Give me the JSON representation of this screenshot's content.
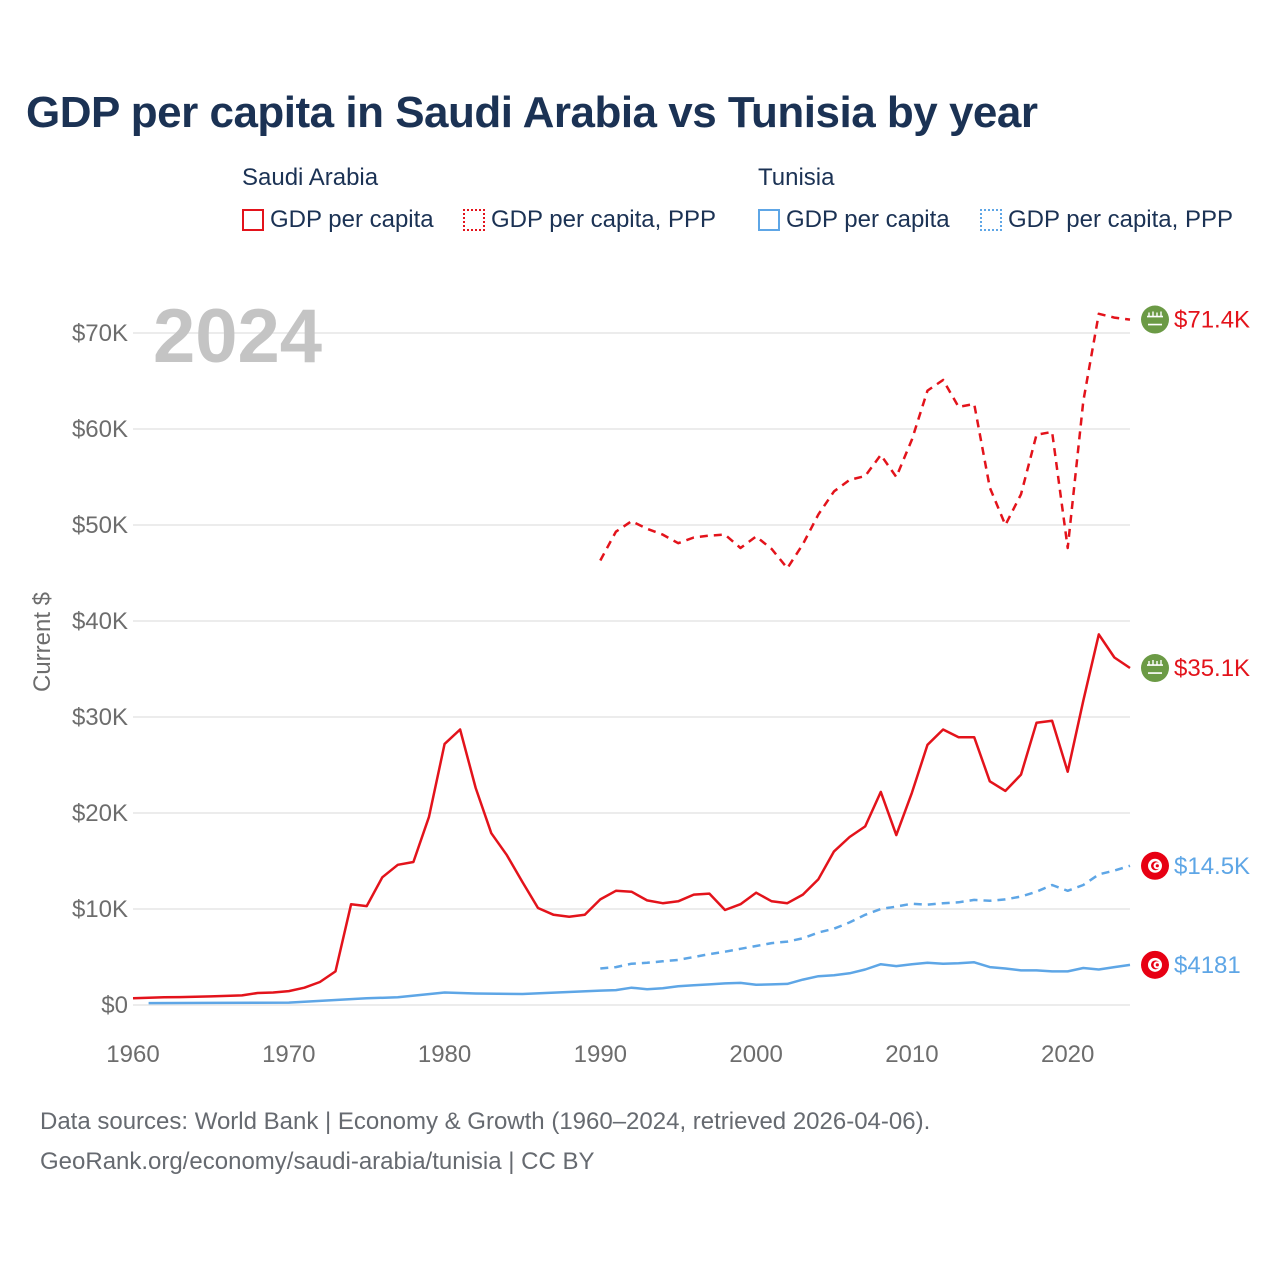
{
  "title": "GDP per capita in Saudi Arabia vs Tunisia by year",
  "legend": {
    "groups": [
      {
        "country": "Saudi Arabia",
        "items": [
          "GDP per capita",
          "GDP per capita, PPP"
        ],
        "color": "#e3131b"
      },
      {
        "country": "Tunisia",
        "items": [
          "GDP per capita",
          "GDP per capita, PPP"
        ],
        "color": "#5ea6e6"
      }
    ]
  },
  "source": {
    "line1": "Data sources: World Bank | Economy & Growth (1960–2024, retrieved 2026-04-06).",
    "line2": "GeoRank.org/economy/saudi-arabia/tunisia | CC BY"
  },
  "chart_data": {
    "type": "line",
    "year_label": "2024",
    "ylabel": "Current $",
    "xlim": [
      1960,
      2024
    ],
    "ylim": [
      0,
      70000
    ],
    "x_ticks": [
      1960,
      1970,
      1980,
      1990,
      2000,
      2010,
      2020
    ],
    "y_ticks": [
      {
        "value": 0,
        "label": "$0"
      },
      {
        "value": 10000,
        "label": "$10K"
      },
      {
        "value": 20000,
        "label": "$20K"
      },
      {
        "value": 30000,
        "label": "$30K"
      },
      {
        "value": 40000,
        "label": "$40K"
      },
      {
        "value": 50000,
        "label": "$50K"
      },
      {
        "value": 60000,
        "label": "$60K"
      },
      {
        "value": 70000,
        "label": "$70K"
      }
    ],
    "series": [
      {
        "name": "Saudi Arabia GDP per capita, PPP",
        "color": "#e3131b",
        "dashed": true,
        "end_label": "$71.4K",
        "flag": "saudi",
        "x": [
          1990,
          1991,
          1992,
          1993,
          1994,
          1995,
          1996,
          1997,
          1998,
          1999,
          2000,
          2001,
          2002,
          2003,
          2004,
          2005,
          2006,
          2007,
          2008,
          2009,
          2010,
          2011,
          2012,
          2013,
          2014,
          2015,
          2016,
          2017,
          2018,
          2019,
          2020,
          2021,
          2022,
          2023,
          2024
        ],
        "y": [
          46300,
          49300,
          50400,
          49600,
          49000,
          48100,
          48700,
          48900,
          49000,
          47600,
          48800,
          47500,
          45500,
          48000,
          51100,
          53500,
          54700,
          55100,
          57300,
          55000,
          58900,
          64000,
          65100,
          62300,
          62600,
          53900,
          50000,
          53200,
          59400,
          59700,
          47600,
          62900,
          72000,
          71600,
          71400
        ]
      },
      {
        "name": "Saudi Arabia GDP per capita",
        "color": "#e3131b",
        "dashed": false,
        "end_label": "$35.1K",
        "flag": "saudi",
        "x": [
          1960,
          1961,
          1962,
          1963,
          1964,
          1965,
          1966,
          1967,
          1968,
          1969,
          1970,
          1971,
          1972,
          1973,
          1974,
          1975,
          1976,
          1977,
          1978,
          1979,
          1980,
          1981,
          1982,
          1983,
          1984,
          1985,
          1986,
          1987,
          1988,
          1989,
          1990,
          1991,
          1992,
          1993,
          1994,
          1995,
          1996,
          1997,
          1998,
          1999,
          2000,
          2001,
          2002,
          2003,
          2004,
          2005,
          2006,
          2007,
          2008,
          2009,
          2010,
          2011,
          2012,
          2013,
          2014,
          2015,
          2016,
          2017,
          2018,
          2019,
          2020,
          2021,
          2022,
          2023,
          2024
        ],
        "y": [
          700,
          750,
          800,
          820,
          860,
          900,
          950,
          1000,
          1250,
          1300,
          1450,
          1800,
          2400,
          3500,
          10500,
          10300,
          13300,
          14600,
          14900,
          19600,
          27200,
          28700,
          22600,
          17900,
          15600,
          12800,
          10100,
          9400,
          9200,
          9400,
          11000,
          11900,
          11800,
          10900,
          10600,
          10800,
          11500,
          11600,
          9900,
          10500,
          11700,
          10800,
          10600,
          11500,
          13100,
          16000,
          17500,
          18600,
          22200,
          17700,
          22100,
          27100,
          28700,
          27900,
          27900,
          23300,
          22300,
          24000,
          29400,
          29600,
          24300,
          31700,
          38600,
          36200,
          35100
        ]
      },
      {
        "name": "Tunisia GDP per capita, PPP",
        "color": "#5ea6e6",
        "dashed": true,
        "end_label": "$14.5K",
        "flag": "tunisia",
        "x": [
          1990,
          1991,
          1992,
          1993,
          1994,
          1995,
          1996,
          1997,
          1998,
          1999,
          2000,
          2001,
          2002,
          2003,
          2004,
          2005,
          2006,
          2007,
          2008,
          2009,
          2010,
          2011,
          2012,
          2013,
          2014,
          2015,
          2016,
          2017,
          2018,
          2019,
          2020,
          2021,
          2022,
          2023,
          2024
        ],
        "y": [
          3800,
          3950,
          4300,
          4400,
          4550,
          4700,
          5000,
          5300,
          5550,
          5850,
          6150,
          6450,
          6600,
          6950,
          7550,
          7950,
          8600,
          9400,
          10000,
          10250,
          10550,
          10450,
          10600,
          10700,
          10950,
          10850,
          11000,
          11300,
          11800,
          12500,
          11900,
          12500,
          13600,
          14000,
          14500
        ]
      },
      {
        "name": "Tunisia GDP per capita",
        "color": "#5ea6e6",
        "dashed": false,
        "end_label": "$4181",
        "flag": "tunisia",
        "x": [
          1961,
          1965,
          1970,
          1975,
          1977,
          1980,
          1982,
          1985,
          1990,
          1991,
          1992,
          1993,
          1994,
          1995,
          1996,
          1997,
          1998,
          1999,
          2000,
          2001,
          2002,
          2003,
          2004,
          2005,
          2006,
          2007,
          2008,
          2009,
          2010,
          2011,
          2012,
          2013,
          2014,
          2015,
          2016,
          2017,
          2018,
          2019,
          2020,
          2021,
          2022,
          2023,
          2024
        ],
        "y": [
          200,
          220,
          250,
          700,
          800,
          1300,
          1200,
          1150,
          1500,
          1550,
          1800,
          1650,
          1750,
          1950,
          2050,
          2150,
          2250,
          2300,
          2100,
          2150,
          2200,
          2650,
          3000,
          3100,
          3300,
          3700,
          4250,
          4050,
          4250,
          4400,
          4300,
          4350,
          4450,
          3950,
          3800,
          3600,
          3600,
          3500,
          3500,
          3850,
          3700,
          3950,
          4181
        ]
      }
    ]
  }
}
